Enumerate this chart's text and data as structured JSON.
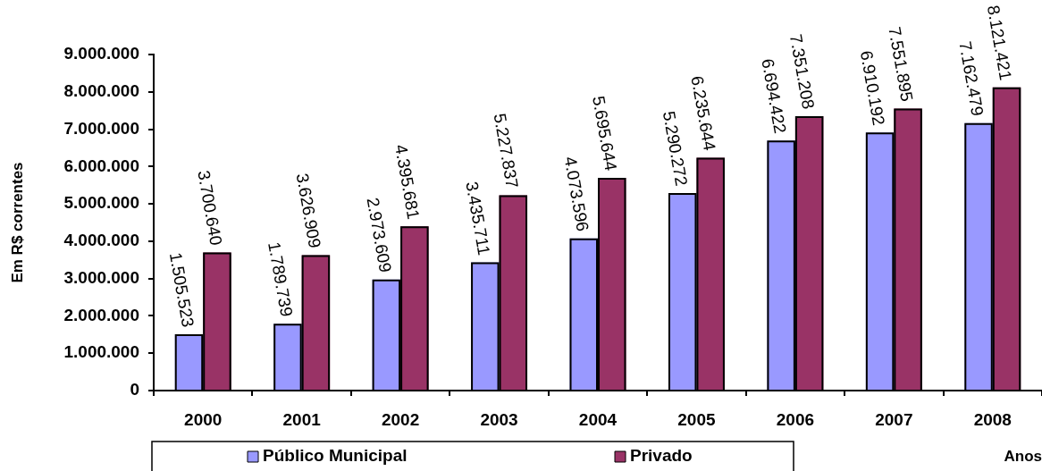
{
  "chart_data": {
    "type": "bar",
    "xlabel": "Anos",
    "ylabel": "Em R$ correntes",
    "categories": [
      "2000",
      "2001",
      "2002",
      "2003",
      "2004",
      "2005",
      "2006",
      "2007",
      "2008"
    ],
    "series": [
      {
        "name": "Público Municipal",
        "color": "#9999ff",
        "values": [
          1505523,
          1789739,
          2973609,
          3435711,
          4073596,
          5290272,
          6694422,
          6910192,
          7162479
        ],
        "value_labels": [
          "1.505.523",
          "1.789.739",
          "2.973.609",
          "3.435.711",
          "4.073.596",
          "5.290.272",
          "6.694.422",
          "6.910.192",
          "7.162.479"
        ]
      },
      {
        "name": "Privado",
        "color": "#993366",
        "values": [
          3700640,
          3626909,
          4395681,
          5227837,
          5695644,
          6235644,
          7351208,
          7551895,
          8121421
        ],
        "value_labels": [
          "3.700.640",
          "3.626.909",
          "4.395.681",
          "5.227.837",
          "5.695.644",
          "6.235.644",
          "7.351.208",
          "7.551.895",
          "8.121.421"
        ]
      }
    ],
    "ylim": [
      0,
      9000000
    ],
    "yticks": [
      {
        "value": 0,
        "label": "0"
      },
      {
        "value": 1000000,
        "label": "1.000.000"
      },
      {
        "value": 2000000,
        "label": "2.000.000"
      },
      {
        "value": 3000000,
        "label": "3.000.000"
      },
      {
        "value": 4000000,
        "label": "4.000.000"
      },
      {
        "value": 5000000,
        "label": "5.000.000"
      },
      {
        "value": 6000000,
        "label": "6.000.000"
      },
      {
        "value": 7000000,
        "label": "7.000.000"
      },
      {
        "value": 8000000,
        "label": "8.000.000"
      },
      {
        "value": 9000000,
        "label": "9.000.000"
      }
    ],
    "grid": false,
    "legend": "bottom"
  }
}
